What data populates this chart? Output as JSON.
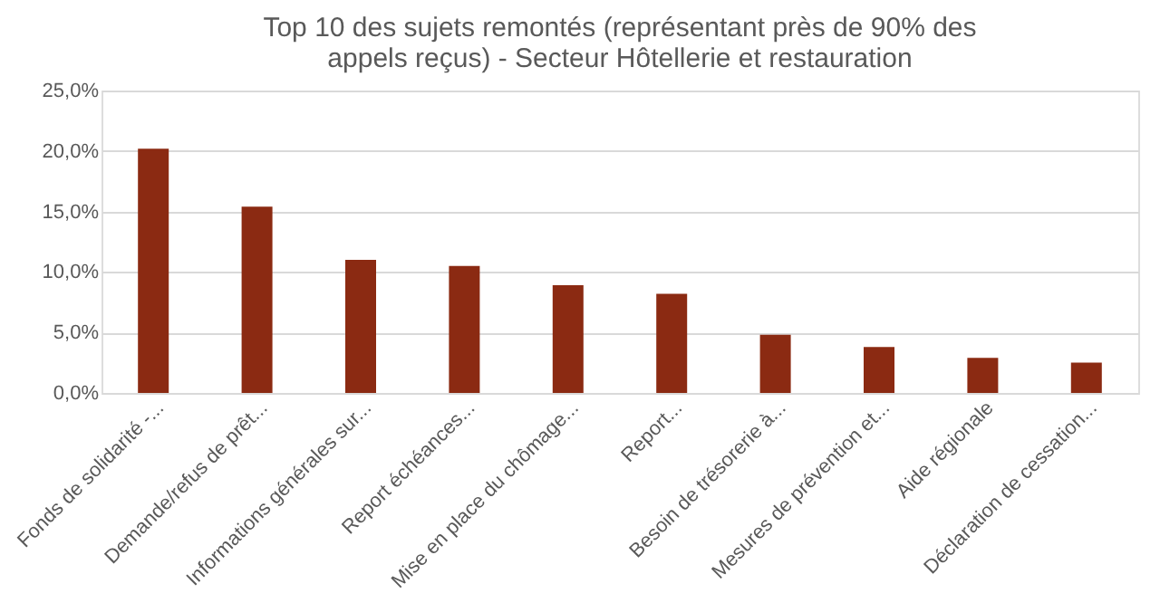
{
  "chart_data": {
    "type": "bar",
    "title": "Top 10 des sujets remontés (représentant près de 90% des appels reçus) - Secteur Hôtellerie et restauration",
    "categories": [
      "Fonds de solidarité -...",
      "Demande/refus de prêt...",
      "Informations générales sur...",
      "Report échéances...",
      "Mise en place du chômage...",
      "Report...",
      "Besoin de trésorerie à...",
      "Mesures de prévention et...",
      "Aide régionale",
      "Déclaration de cessation..."
    ],
    "values": [
      20.2,
      15.4,
      11.0,
      10.5,
      8.9,
      8.2,
      4.8,
      3.8,
      2.9,
      2.5
    ],
    "color": "#8b2a12",
    "ylim": [
      0,
      25
    ],
    "yticks": [
      {
        "value": 0,
        "label": "0,0%"
      },
      {
        "value": 5,
        "label": "5,0%"
      },
      {
        "value": 10,
        "label": "10,0%"
      },
      {
        "value": 15,
        "label": "15,0%"
      },
      {
        "value": 20,
        "label": "20,0%"
      },
      {
        "value": 25,
        "label": "25,0%"
      }
    ],
    "grid": "y"
  }
}
